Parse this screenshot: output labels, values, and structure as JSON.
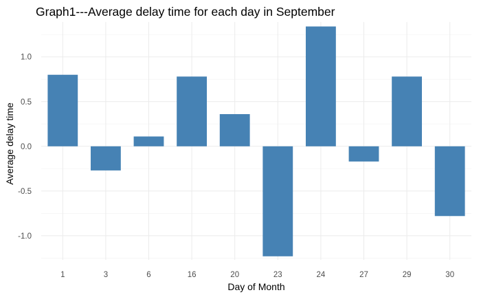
{
  "chart_data": {
    "type": "bar",
    "title": "Graph1---Average delay time for each day in September",
    "xlabel": "Day of Month",
    "ylabel": "Average delay time",
    "categories": [
      "1",
      "3",
      "6",
      "16",
      "20",
      "23",
      "24",
      "27",
      "29",
      "30"
    ],
    "values": [
      0.8,
      -0.27,
      0.11,
      0.78,
      0.36,
      -1.23,
      1.34,
      -0.17,
      0.78,
      -0.78
    ],
    "ylim": [
      -1.27,
      1.39
    ],
    "yticks": [
      -1.0,
      -0.5,
      0.0,
      0.5,
      1.0
    ],
    "ytick_labels": [
      "-1.0",
      "-0.5",
      "0.0",
      "0.5",
      "1.0"
    ],
    "grid": true,
    "bar_color": "#4682B4",
    "legend": "none"
  }
}
